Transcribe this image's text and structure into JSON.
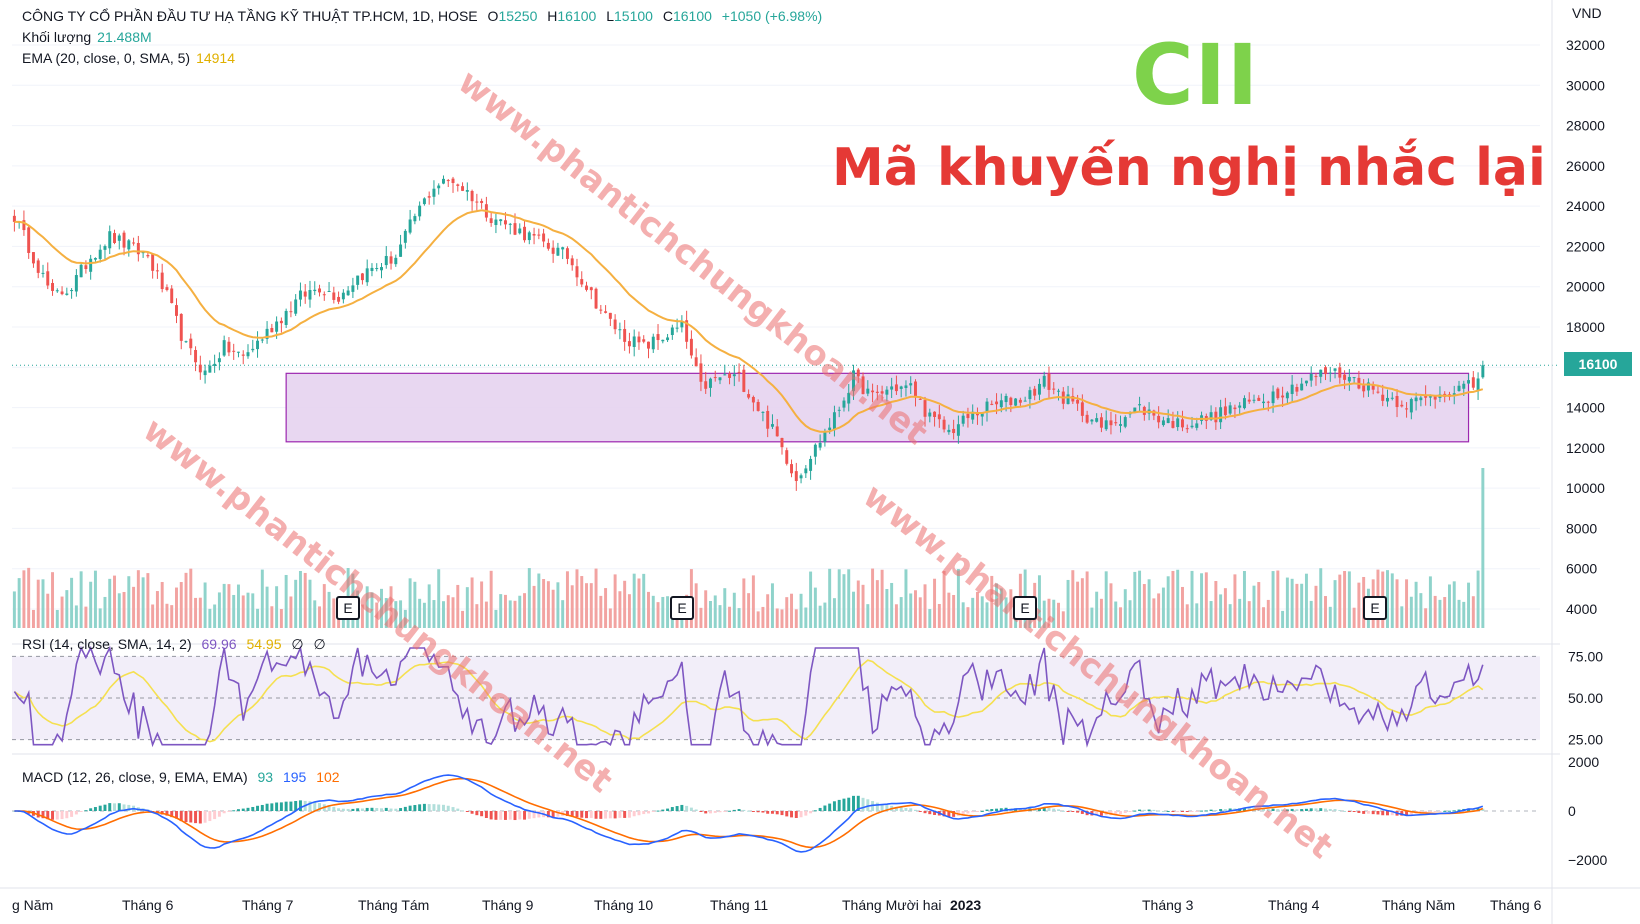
{
  "header": {
    "company": "CÔNG TY CỔ PHẦN ĐẦU TƯ HẠ TẦNG KỸ THUẬT TP.HCM, 1D, HOSE",
    "o_label": "O",
    "o_value": "15250",
    "h_label": "H",
    "h_value": "16100",
    "l_label": "L",
    "l_value": "15100",
    "c_label": "C",
    "c_value": "16100",
    "change": "+1050 (+6.98%)",
    "volume_label": "Khối lượng",
    "volume_value": "21.488M",
    "ema_label": "EMA (20, close, 0, SMA, 5)",
    "ema_value": "14914",
    "rsi_label": "RSI (14, close, SMA, 14, 2)",
    "rsi_value": "69.96",
    "rsi_ma_value": "54.95",
    "rsi_extra1": "∅",
    "rsi_extra2": "∅",
    "macd_label": "MACD (12, 26, close, 9, EMA, EMA)",
    "macd_hist": "93",
    "macd_value": "195",
    "macd_signal": "102"
  },
  "overlay": {
    "ticker": "CII",
    "note": "Mã khuyến nghị nhắc lại",
    "watermarks": [
      "www.phantichchungkhoan.net",
      "www.phantichchungkhoan.net",
      "www.phantichchungkhoan.net"
    ]
  },
  "last_price_tag": "16100",
  "earnings_marker": "E",
  "colors": {
    "up": "#26a69a",
    "down": "#ef5350",
    "ema": "#f5b041",
    "zone": "#e6d3f0",
    "zone_border": "#9c27b0",
    "rsi": "#7e57c2",
    "rsi_ma": "#f5e050",
    "macd": "#2962ff",
    "signal": "#ff6d00"
  },
  "chart_data": {
    "type": "candlestick",
    "currency": "VND",
    "price_axis": {
      "ticks": [
        4000,
        6000,
        8000,
        10000,
        12000,
        14000,
        16000,
        18000,
        20000,
        22000,
        24000,
        26000,
        28000,
        30000,
        32000
      ],
      "unit_label": "VND"
    },
    "x_axis_labels": [
      "g Năm",
      "Tháng 6",
      "Tháng 7",
      "Tháng Tám",
      "Tháng 9",
      "Tháng 10",
      "Tháng 11",
      "Tháng Mười hai",
      "2023",
      "Tháng 3",
      "Tháng 4",
      "Tháng Năm",
      "Tháng 6"
    ],
    "close_path": [
      {
        "i": 0,
        "v": 23500
      },
      {
        "i": 4,
        "v": 21500
      },
      {
        "i": 8,
        "v": 19500
      },
      {
        "i": 12,
        "v": 20000
      },
      {
        "i": 16,
        "v": 21500
      },
      {
        "i": 20,
        "v": 22500
      },
      {
        "i": 24,
        "v": 22000
      },
      {
        "i": 28,
        "v": 21500
      },
      {
        "i": 32,
        "v": 19500
      },
      {
        "i": 36,
        "v": 17000
      },
      {
        "i": 40,
        "v": 15700
      },
      {
        "i": 44,
        "v": 17000
      },
      {
        "i": 48,
        "v": 16500
      },
      {
        "i": 52,
        "v": 17500
      },
      {
        "i": 56,
        "v": 18500
      },
      {
        "i": 60,
        "v": 19500
      },
      {
        "i": 64,
        "v": 20000
      },
      {
        "i": 68,
        "v": 19500
      },
      {
        "i": 72,
        "v": 20500
      },
      {
        "i": 76,
        "v": 21000
      },
      {
        "i": 80,
        "v": 21500
      },
      {
        "i": 84,
        "v": 23500
      },
      {
        "i": 88,
        "v": 25000
      },
      {
        "i": 92,
        "v": 25300
      },
      {
        "i": 96,
        "v": 24500
      },
      {
        "i": 100,
        "v": 23500
      },
      {
        "i": 104,
        "v": 23000
      },
      {
        "i": 108,
        "v": 22500
      },
      {
        "i": 112,
        "v": 22000
      },
      {
        "i": 116,
        "v": 21500
      },
      {
        "i": 120,
        "v": 20000
      },
      {
        "i": 124,
        "v": 18500
      },
      {
        "i": 128,
        "v": 17500
      },
      {
        "i": 132,
        "v": 17000
      },
      {
        "i": 136,
        "v": 17500
      },
      {
        "i": 140,
        "v": 18000
      },
      {
        "i": 144,
        "v": 15000
      },
      {
        "i": 148,
        "v": 15500
      },
      {
        "i": 152,
        "v": 15500
      },
      {
        "i": 156,
        "v": 14000
      },
      {
        "i": 160,
        "v": 12500
      },
      {
        "i": 164,
        "v": 10500
      },
      {
        "i": 168,
        "v": 12000
      },
      {
        "i": 172,
        "v": 13500
      },
      {
        "i": 176,
        "v": 15500
      },
      {
        "i": 180,
        "v": 14500
      },
      {
        "i": 184,
        "v": 15000
      },
      {
        "i": 188,
        "v": 15000
      },
      {
        "i": 192,
        "v": 13500
      },
      {
        "i": 196,
        "v": 12800
      },
      {
        "i": 200,
        "v": 13500
      },
      {
        "i": 204,
        "v": 14000
      },
      {
        "i": 208,
        "v": 14300
      },
      {
        "i": 212,
        "v": 14500
      },
      {
        "i": 216,
        "v": 15300
      },
      {
        "i": 220,
        "v": 14500
      },
      {
        "i": 224,
        "v": 13800
      },
      {
        "i": 228,
        "v": 13000
      },
      {
        "i": 232,
        "v": 13500
      },
      {
        "i": 236,
        "v": 14000
      },
      {
        "i": 240,
        "v": 13500
      },
      {
        "i": 244,
        "v": 13200
      },
      {
        "i": 248,
        "v": 13300
      },
      {
        "i": 252,
        "v": 13600
      },
      {
        "i": 256,
        "v": 14000
      },
      {
        "i": 260,
        "v": 14300
      },
      {
        "i": 264,
        "v": 14700
      },
      {
        "i": 268,
        "v": 15000
      },
      {
        "i": 272,
        "v": 15500
      },
      {
        "i": 276,
        "v": 15800
      },
      {
        "i": 280,
        "v": 15500
      },
      {
        "i": 284,
        "v": 15000
      },
      {
        "i": 288,
        "v": 14500
      },
      {
        "i": 292,
        "v": 14200
      },
      {
        "i": 296,
        "v": 14400
      },
      {
        "i": 300,
        "v": 14800
      },
      {
        "i": 304,
        "v": 15000
      },
      {
        "i": 306,
        "v": 15050
      },
      {
        "i": 308,
        "v": 16100
      }
    ],
    "support_zone": {
      "low": 12300,
      "high": 15700
    },
    "last_close": 16100,
    "ema_last": 14914,
    "last_volume": 21488000,
    "rsi": {
      "levels": [
        75,
        50,
        25
      ],
      "axis_labels": [
        "75.00",
        "50.00",
        "25.00"
      ],
      "last": 69.96,
      "ma_last": 54.95
    },
    "macd": {
      "axis_labels": [
        "2000",
        "0",
        "−2000"
      ],
      "hist_last": 93,
      "macd_last": 195,
      "signal_last": 102
    }
  }
}
